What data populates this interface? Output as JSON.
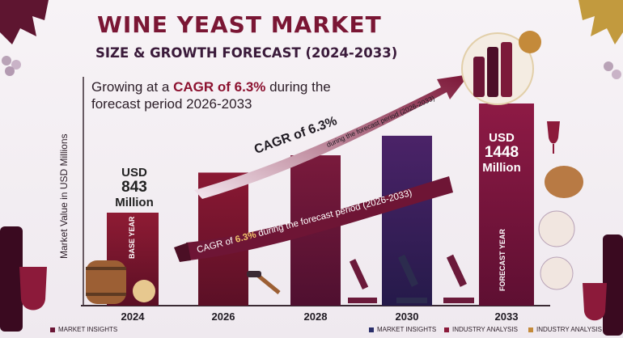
{
  "header": {
    "title": "WINE YEAST MARKET",
    "subtitle": "SIZE & GROWTH FORECAST (2024-2033)",
    "cagr_note_prefix": "Growing at a ",
    "cagr_note_highlight": "CAGR of 6.3%",
    "cagr_note_suffix": " during the forecast period 2026-2033"
  },
  "chart_data": {
    "type": "bar",
    "categories": [
      "2024",
      "2026",
      "2028",
      "2030",
      "2033"
    ],
    "values": [
      843,
      953,
      1077,
      1217,
      1448
    ],
    "ylabel": "Market Value in USD Millions",
    "annotations": {
      "start": {
        "line1": "USD",
        "line2": "843",
        "line3": "Million"
      },
      "end": {
        "line1": "USD",
        "line2": "1448",
        "line3": "Million"
      },
      "base_year": "BASE YEAR",
      "forecast_year": "FORECAST YEAR",
      "arrow_cagr": "CAGR of 6.3%",
      "arrow_period": "during the forecast period (2026-2033)",
      "ribbon_prefix": "CAGR of ",
      "ribbon_highlight": "6.3%",
      "ribbon_suffix": " during the forecast period (2026-2033)"
    },
    "colors": [
      "#7d1830",
      "#7d1830",
      "#6e1a3a",
      "#3d2059",
      "#7a1540"
    ]
  },
  "legend": {
    "left": {
      "label": "MARKET INSIGHTS",
      "color": "#6b1535"
    },
    "items": [
      {
        "label": "MARKET INSIGHTS",
        "color": "#2a2f6a"
      },
      {
        "label": "INDUSTRY ANALYSIS",
        "color": "#8b1a3a"
      },
      {
        "label": "INDUSTRY ANALYSIS",
        "color": "#c48a3a"
      }
    ]
  }
}
